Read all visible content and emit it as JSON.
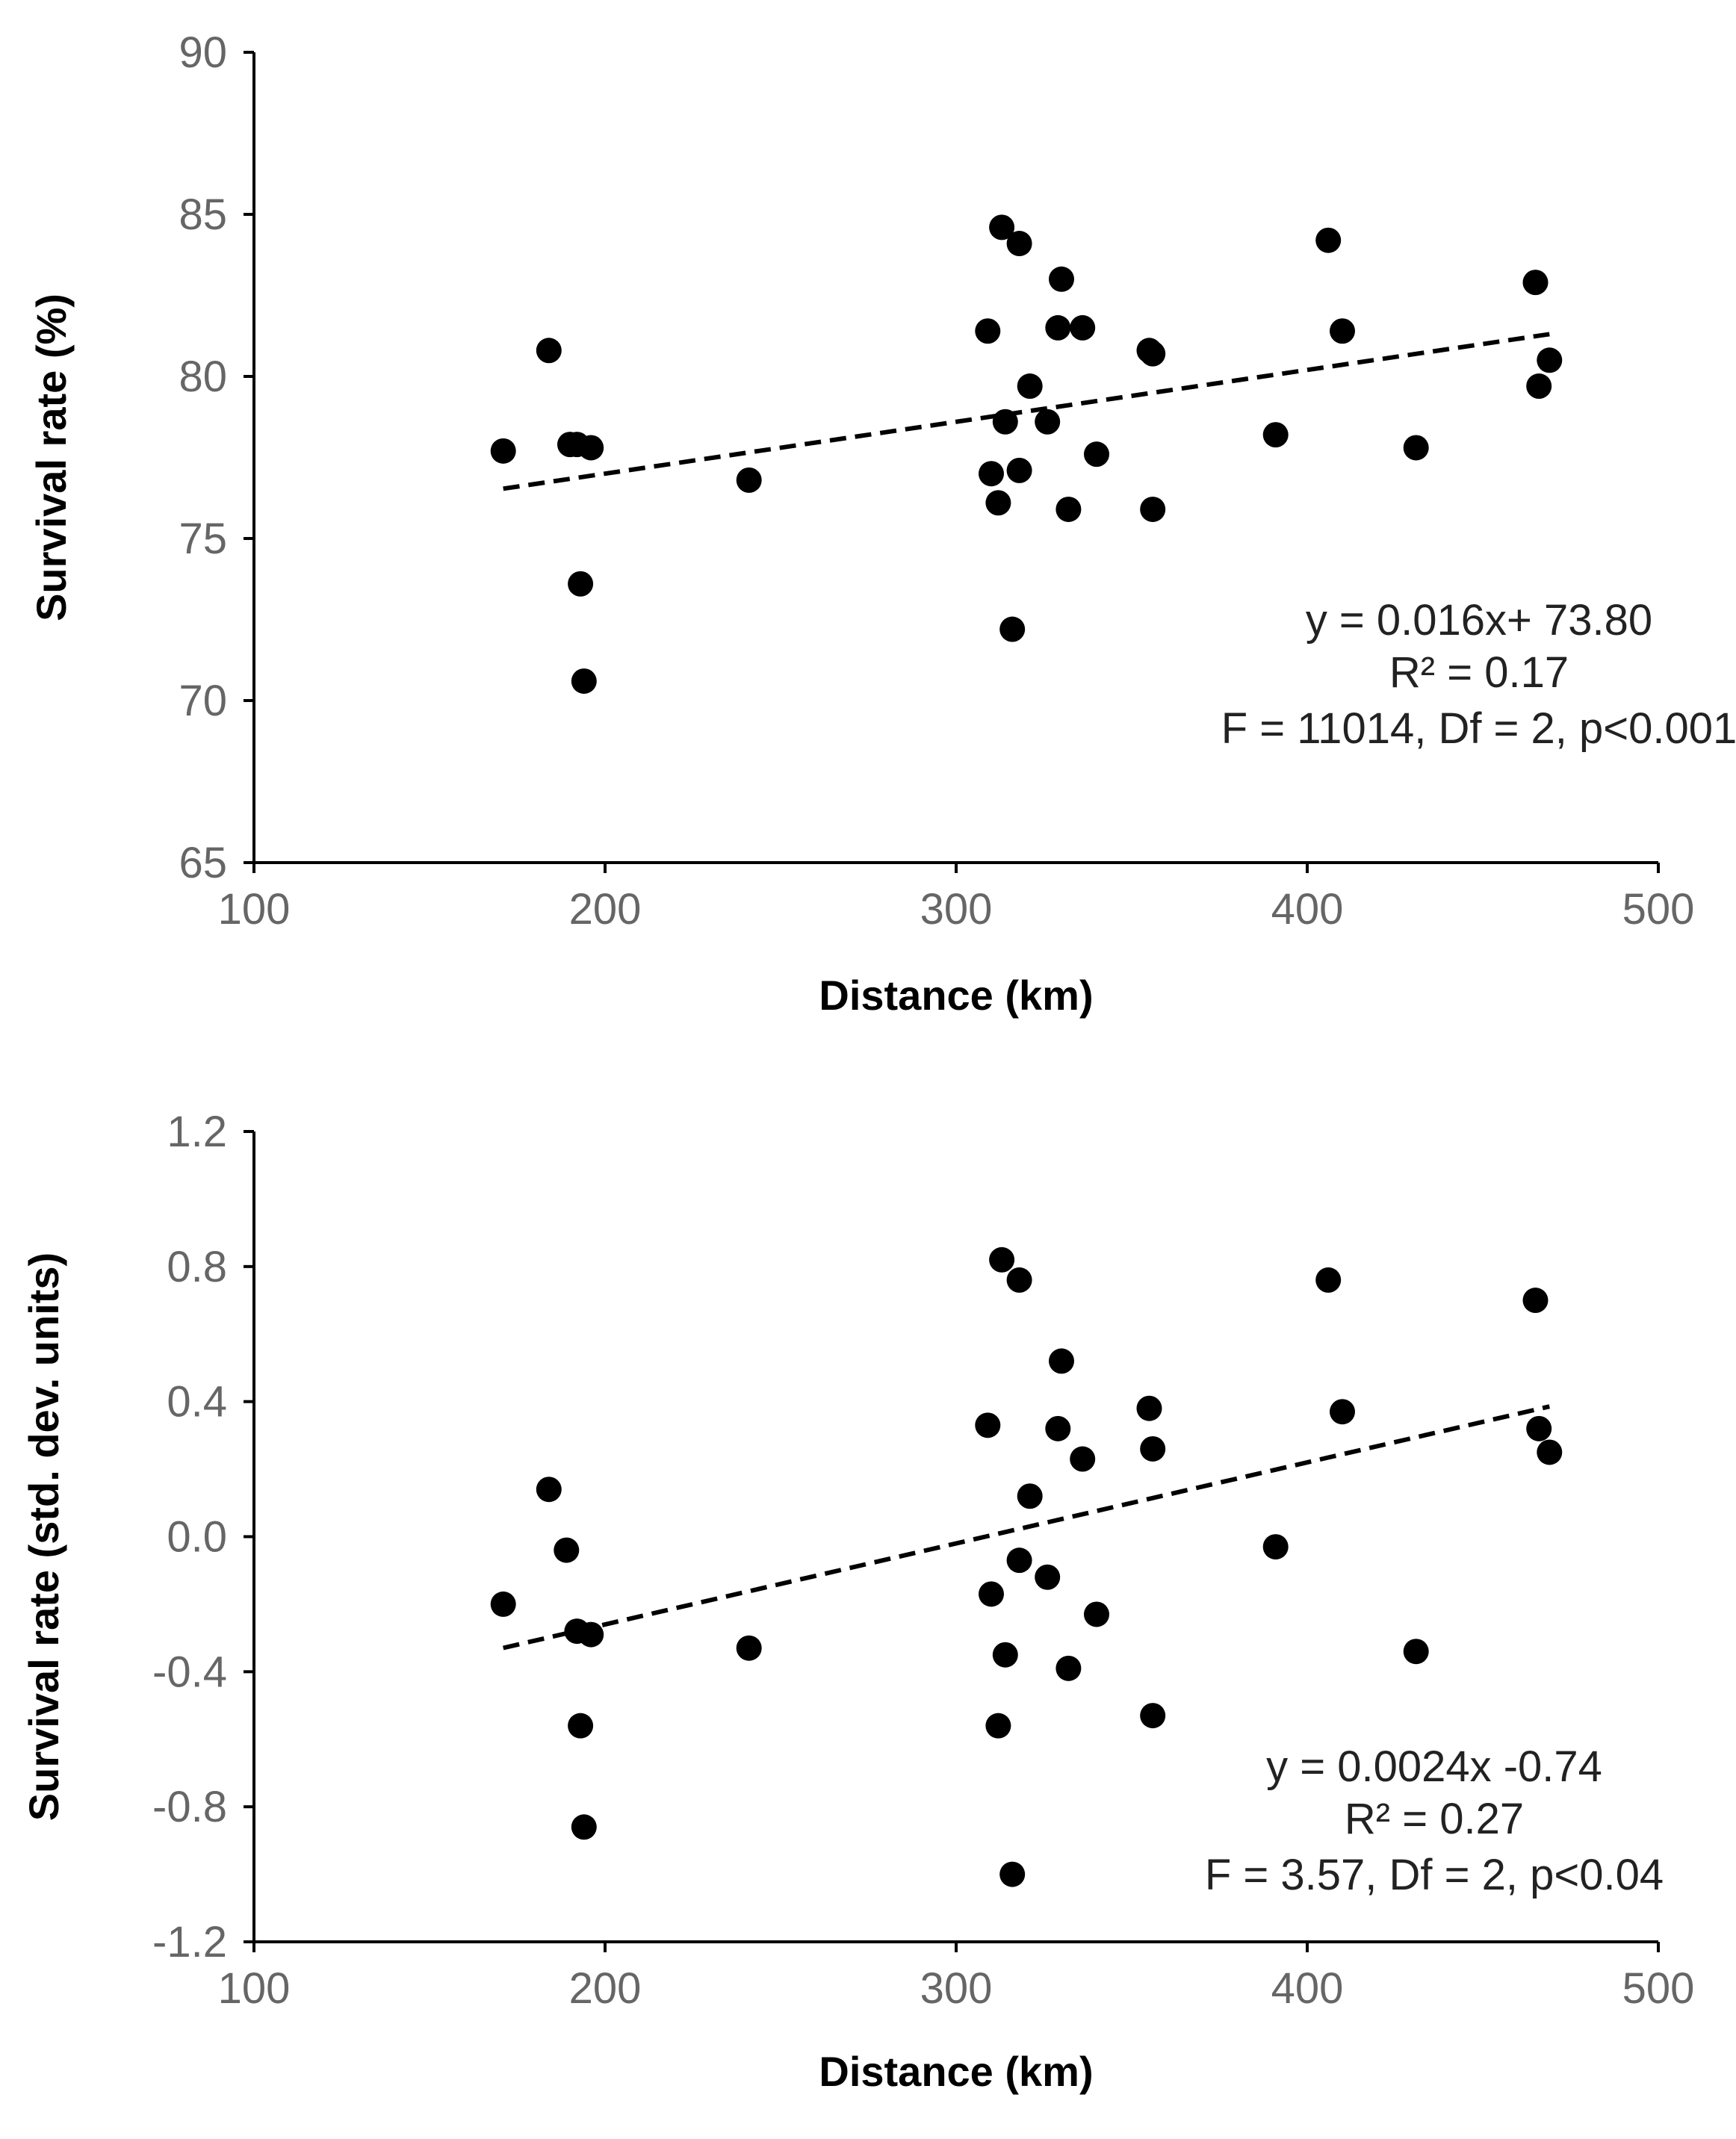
{
  "chart_data": [
    {
      "type": "scatter",
      "xlabel": "Distance (km)",
      "ylabel": "Survival rate (%)",
      "xlim": [
        100,
        500
      ],
      "ylim": [
        65,
        90
      ],
      "xticks": [
        "100",
        "200",
        "300",
        "400",
        "500"
      ],
      "yticks": [
        "65",
        "70",
        "75",
        "80",
        "85",
        "90"
      ],
      "xtick_values": [
        100,
        200,
        300,
        400,
        500
      ],
      "ytick_values": [
        65,
        70,
        75,
        80,
        85,
        90
      ],
      "points": [
        [
          171,
          77.7
        ],
        [
          184,
          80.8
        ],
        [
          190,
          77.9
        ],
        [
          192,
          77.9
        ],
        [
          193,
          73.6
        ],
        [
          194,
          70.6
        ],
        [
          196,
          77.8
        ],
        [
          241,
          76.8
        ],
        [
          309,
          81.4
        ],
        [
          310,
          77.0
        ],
        [
          312,
          76.1
        ],
        [
          313,
          84.6
        ],
        [
          314,
          78.6
        ],
        [
          316,
          72.2
        ],
        [
          318,
          77.1
        ],
        [
          318,
          84.1
        ],
        [
          321,
          79.7
        ],
        [
          326,
          78.6
        ],
        [
          329,
          81.5
        ],
        [
          330,
          83.0
        ],
        [
          332,
          75.9
        ],
        [
          336,
          81.5
        ],
        [
          340,
          77.6
        ],
        [
          355,
          80.8
        ],
        [
          356,
          80.7
        ],
        [
          356,
          75.9
        ],
        [
          391,
          78.2
        ],
        [
          406,
          84.2
        ],
        [
          410,
          81.4
        ],
        [
          431,
          77.8
        ],
        [
          465,
          82.9
        ],
        [
          466,
          79.7
        ],
        [
          469,
          80.5
        ]
      ],
      "trendline": {
        "slope": 0.016,
        "intercept": 73.8,
        "x_range": [
          171,
          469
        ]
      },
      "annotations": [
        "y = 0.016x+ 73.80",
        "R² = 0.17",
        "F = 11014,  Df = 2,  p<0.001"
      ]
    },
    {
      "type": "scatter",
      "xlabel": "Distance (km)",
      "ylabel": "Survival rate (std. dev. units)",
      "xlim": [
        100,
        500
      ],
      "ylim": [
        -1.2,
        1.2
      ],
      "xticks": [
        "100",
        "200",
        "300",
        "400",
        "500"
      ],
      "yticks": [
        "-1.2",
        "-0.8",
        "-0.4",
        "0.0",
        "0.4",
        "0.8",
        "1.2"
      ],
      "xtick_values": [
        100,
        200,
        300,
        400,
        500
      ],
      "ytick_values": [
        -1.2,
        -0.8,
        -0.4,
        0.0,
        0.4,
        0.8,
        1.2
      ],
      "points": [
        [
          171,
          -0.2
        ],
        [
          184,
          0.14
        ],
        [
          189,
          -0.04
        ],
        [
          192,
          -0.28
        ],
        [
          193,
          -0.56
        ],
        [
          194,
          -0.86
        ],
        [
          196,
          -0.29
        ],
        [
          241,
          -0.33
        ],
        [
          309,
          0.33
        ],
        [
          310,
          -0.17
        ],
        [
          312,
          -0.56
        ],
        [
          313,
          0.82
        ],
        [
          314,
          -0.35
        ],
        [
          316,
          -1.0
        ],
        [
          318,
          -0.07
        ],
        [
          318,
          0.76
        ],
        [
          321,
          0.12
        ],
        [
          326,
          -0.12
        ],
        [
          329,
          0.32
        ],
        [
          330,
          0.52
        ],
        [
          332,
          -0.39
        ],
        [
          336,
          0.23
        ],
        [
          340,
          -0.23
        ],
        [
          355,
          0.38
        ],
        [
          356,
          0.26
        ],
        [
          356,
          -0.53
        ],
        [
          391,
          -0.03
        ],
        [
          406,
          0.76
        ],
        [
          410,
          0.37
        ],
        [
          431,
          -0.34
        ],
        [
          465,
          0.7
        ],
        [
          466,
          0.32
        ],
        [
          469,
          0.25
        ]
      ],
      "trendline": {
        "slope": 0.0024,
        "intercept": -0.74,
        "x_range": [
          171,
          469
        ]
      },
      "annotations": [
        "y = 0.0024x -0.74",
        "R² = 0.27",
        "F = 3.57,  Df = 2,  p<0.04"
      ]
    }
  ]
}
